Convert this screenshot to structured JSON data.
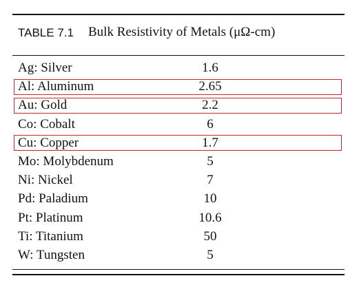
{
  "table": {
    "label": "TABLE 7.1",
    "title": "Bulk Resistivity of Metals (μΩ-cm)",
    "rows": [
      {
        "metal": "Ag: Silver",
        "value": "1.6",
        "highlighted": false
      },
      {
        "metal": "Al: Aluminum",
        "value": "2.65",
        "highlighted": true
      },
      {
        "metal": "Au: Gold",
        "value": "2.2",
        "highlighted": true
      },
      {
        "metal": "Co: Cobalt",
        "value": "6",
        "highlighted": false
      },
      {
        "metal": "Cu: Copper",
        "value": "1.7",
        "highlighted": true
      },
      {
        "metal": "Mo: Molybdenum",
        "value": "5",
        "highlighted": false
      },
      {
        "metal": "Ni: Nickel",
        "value": "7",
        "highlighted": false
      },
      {
        "metal": "Pd: Paladium",
        "value": "10",
        "highlighted": false
      },
      {
        "metal": "Pt: Platinum",
        "value": "10.6",
        "highlighted": false
      },
      {
        "metal": "Ti: Titanium",
        "value": "50",
        "highlighted": false
      },
      {
        "metal": "W: Tungsten",
        "value": "5",
        "highlighted": false
      }
    ],
    "highlight_color": "#c0282d"
  }
}
